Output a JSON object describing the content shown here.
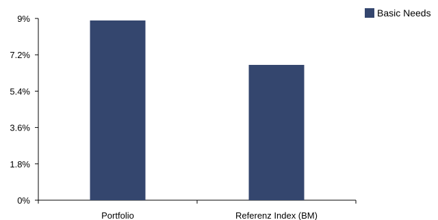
{
  "chart_data": {
    "type": "bar",
    "title": "",
    "xlabel": "",
    "ylabel": "",
    "categories": [
      "Portfolio",
      "Referenz Index (BM)"
    ],
    "series": [
      {
        "name": "Basic Needs",
        "values": [
          8.9,
          6.7
        ],
        "color": "#34466e"
      }
    ],
    "ylim": [
      0,
      9
    ],
    "yticks": [
      0,
      1.8,
      3.6,
      5.4,
      7.2,
      9
    ],
    "ytick_labels": [
      "0%",
      "1.8%",
      "3.6%",
      "5.4%",
      "7.2%",
      "9%"
    ],
    "grid": false,
    "legend_position": "top-right"
  }
}
